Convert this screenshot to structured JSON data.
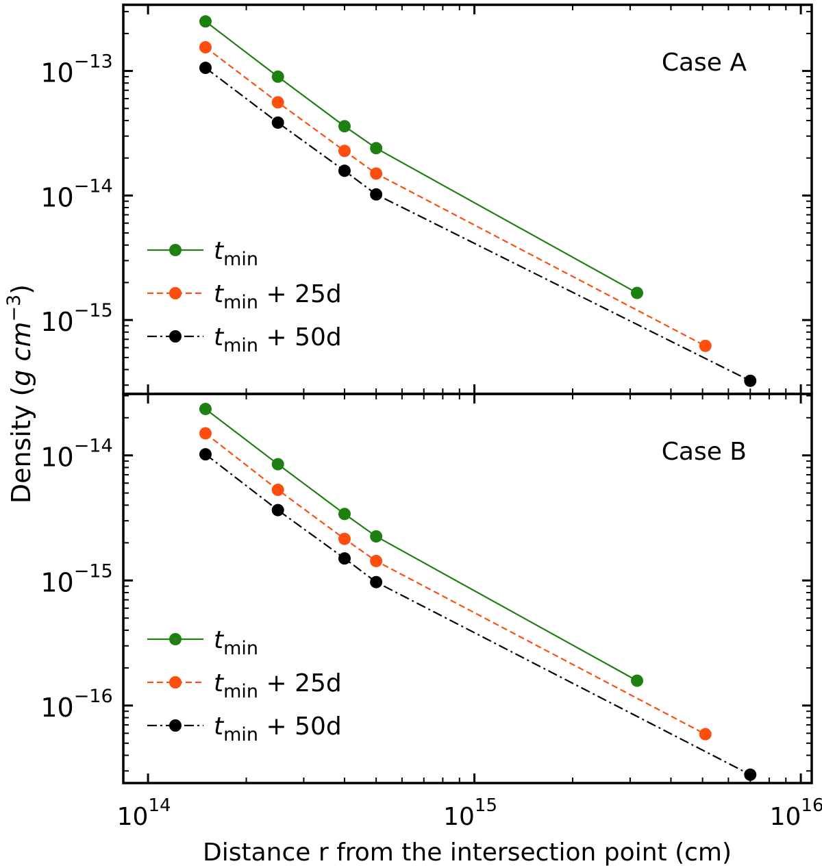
{
  "chart_data": {
    "type": "line",
    "xlabel": "Distance r from the intersection point (cm)",
    "ylabel": {
      "text": "Density",
      "unit_g": "g",
      "unit_cm": "cm",
      "unit_exp": "−3"
    },
    "xscale": "log",
    "yscale": "log",
    "xlim": [
      84000000000000.0,
      1.08e+16
    ],
    "x_ticks": [
      {
        "base": "10",
        "exp": "14",
        "value": 100000000000000.0
      },
      {
        "base": "10",
        "exp": "15",
        "value": 1000000000000000.0
      },
      {
        "base": "10",
        "exp": "16",
        "value": 1e+16
      }
    ],
    "legend_location": "lower-left",
    "panels": [
      {
        "title": "Case A",
        "ylim": [
          2.55e-16,
          3.4e-13
        ],
        "y_ticks": [
          {
            "base": "10",
            "exp": "−13",
            "value": 1e-13
          },
          {
            "base": "10",
            "exp": "−14",
            "value": 1e-14
          },
          {
            "base": "10",
            "exp": "−15",
            "value": 1e-15
          }
        ],
        "series": [
          {
            "name": "t_min",
            "label_main": "t",
            "label_sub": "min",
            "label_suffix": "",
            "color": "#1e8010",
            "dash": "solid",
            "x": [
              150000000000000.0,
              250000000000000.0,
              400000000000000.0,
              500000000000000.0,
              3150000000000000.0
            ],
            "y": [
              2.5e-13,
              9e-14,
              3.6e-14,
              2.4e-14,
              1.65e-15
            ]
          },
          {
            "name": "t_min + 25d",
            "label_main": "t",
            "label_sub": "min",
            "label_suffix": " + 25d",
            "color": "#ff4d10",
            "dash": "dashed",
            "x": [
              150000000000000.0,
              250000000000000.0,
              400000000000000.0,
              500000000000000.0,
              5100000000000000.0
            ],
            "y": [
              1.55e-13,
              5.6e-14,
              2.28e-14,
              1.5e-14,
              6.2e-16
            ]
          },
          {
            "name": "t_min + 50d",
            "label_main": "t",
            "label_sub": "min",
            "label_suffix": " + 50d",
            "color": "#000000",
            "dash": "dashdot",
            "x": [
              150000000000000.0,
              250000000000000.0,
              400000000000000.0,
              500000000000000.0,
              7000000000000000.0
            ],
            "y": [
              1.06e-13,
              3.85e-14,
              1.58e-14,
              1.02e-14,
              3.25e-16
            ]
          }
        ]
      },
      {
        "title": "Case B",
        "ylim": [
          2.4e-17,
          3.1e-14
        ],
        "y_ticks": [
          {
            "base": "10",
            "exp": "−14",
            "value": 1e-14
          },
          {
            "base": "10",
            "exp": "−15",
            "value": 1e-15
          },
          {
            "base": "10",
            "exp": "−16",
            "value": 1e-16
          }
        ],
        "series": [
          {
            "name": "t_min",
            "label_main": "t",
            "label_sub": "min",
            "label_suffix": "",
            "color": "#1e8010",
            "dash": "solid",
            "x": [
              150000000000000.0,
              250000000000000.0,
              400000000000000.0,
              500000000000000.0,
              3150000000000000.0
            ],
            "y": [
              2.35e-14,
              8.5e-15,
              3.4e-15,
              2.25e-15,
              1.58e-16
            ]
          },
          {
            "name": "t_min + 25d",
            "label_main": "t",
            "label_sub": "min",
            "label_suffix": " + 25d",
            "color": "#ff4d10",
            "dash": "dashed",
            "x": [
              150000000000000.0,
              250000000000000.0,
              400000000000000.0,
              500000000000000.0,
              5100000000000000.0
            ],
            "y": [
              1.5e-14,
              5.3e-15,
              2.15e-15,
              1.43e-15,
              5.9e-17
            ]
          },
          {
            "name": "t_min + 50d",
            "label_main": "t",
            "label_sub": "min",
            "label_suffix": " + 50d",
            "color": "#000000",
            "dash": "dashdot",
            "x": [
              150000000000000.0,
              250000000000000.0,
              400000000000000.0,
              500000000000000.0,
              7000000000000000.0
            ],
            "y": [
              1.02e-14,
              3.65e-15,
              1.5e-15,
              9.7e-16,
              2.8e-17
            ]
          }
        ]
      }
    ]
  }
}
